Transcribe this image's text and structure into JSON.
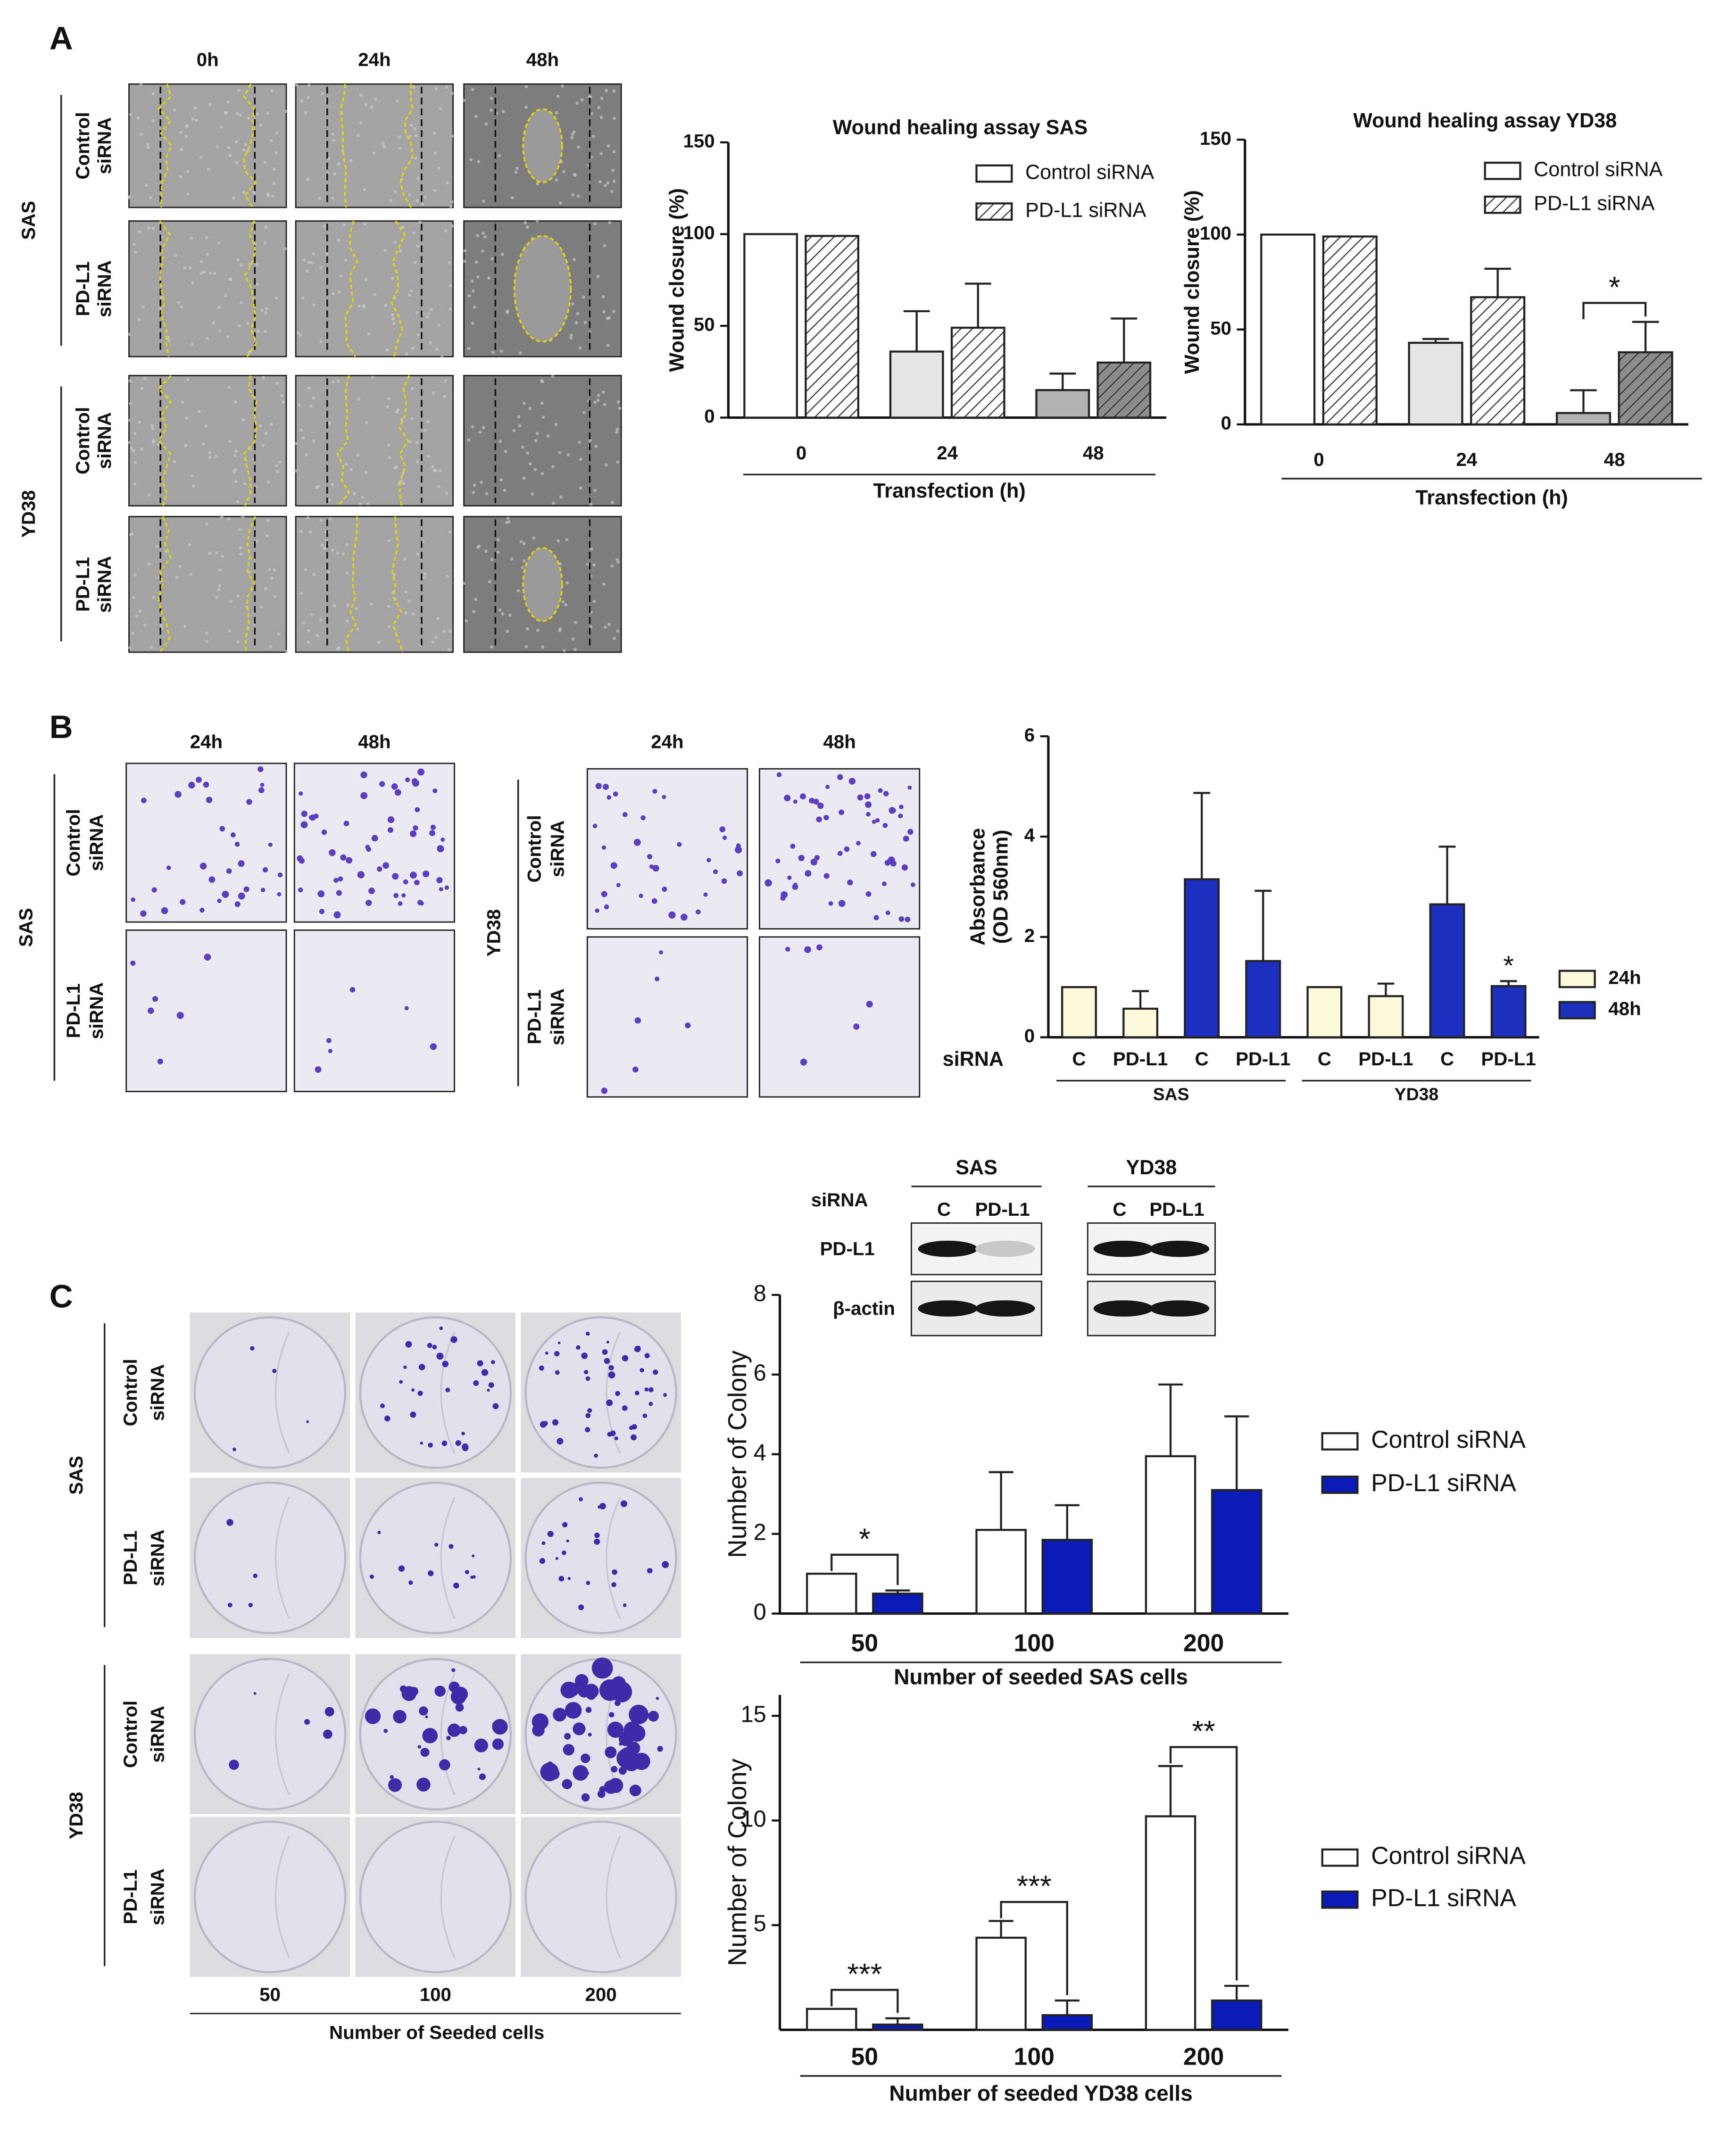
{
  "panel_labels": [
    "A",
    "B",
    "C"
  ],
  "panel_A_images": {
    "columns": [
      "0h",
      "24h",
      "48h"
    ],
    "groups": [
      {
        "name": "SAS",
        "rows": [
          [
            "Control",
            "siRNA"
          ],
          [
            "PD-L1",
            "siRNA"
          ]
        ]
      },
      {
        "name": "YD38",
        "rows": [
          [
            "Control",
            "siRNA"
          ],
          [
            "PD-L1",
            "siRNA"
          ]
        ]
      }
    ]
  },
  "panel_B_images": {
    "sets": [
      {
        "name": "SAS",
        "columns": [
          "24h",
          "48h"
        ],
        "rows": [
          [
            "Control",
            "siRNA"
          ],
          [
            "PD-L1",
            "siRNA"
          ]
        ]
      },
      {
        "name": "YD38",
        "columns": [
          "24h",
          "48h"
        ],
        "rows": [
          [
            "Control",
            "siRNA"
          ],
          [
            "PD-L1",
            "siRNA"
          ]
        ]
      }
    ]
  },
  "panel_C_images": {
    "columns": [
      "50",
      "100",
      "200"
    ],
    "xlabel": "Number of Seeded cells",
    "groups": [
      {
        "name": "SAS",
        "rows": [
          [
            "Control",
            "siRNA"
          ],
          [
            "PD-L1",
            "siRNA"
          ]
        ]
      },
      {
        "name": "YD38",
        "rows": [
          [
            "Control",
            "siRNA"
          ],
          [
            "PD-L1",
            "siRNA"
          ]
        ]
      }
    ]
  },
  "western_blot": {
    "groups": [
      "SAS",
      "YD38"
    ],
    "siRNA_label": "siRNA",
    "lanes": [
      [
        "C",
        "PD-L1"
      ],
      [
        "C",
        "PD-L1"
      ]
    ],
    "rows": [
      "PD-L1",
      "β-actin"
    ]
  },
  "chart_data": [
    {
      "type": "bar",
      "title": "Wound healing assay SAS",
      "ylabel": "Wound closure (%)",
      "xlabel": "Transfection (h)",
      "categories": [
        "0",
        "24",
        "48"
      ],
      "series": [
        {
          "name": "Control siRNA",
          "colors": [
            "#ffffff",
            "#e6e6e6",
            "#b3b3b3"
          ],
          "values": [
            100,
            36,
            15
          ],
          "errors": [
            null,
            22,
            9
          ]
        },
        {
          "name": "PD-L1 siRNA",
          "pattern": "hatch",
          "colors": [
            "#ffffff",
            "#ffffff",
            "#8c8c8c"
          ],
          "values": [
            99,
            49,
            30
          ],
          "errors": [
            null,
            24,
            24
          ]
        }
      ],
      "ylim": [
        0,
        150
      ],
      "yticks": [
        0,
        50,
        100,
        150
      ],
      "legend": "upper right"
    },
    {
      "type": "bar",
      "title": "Wound healing assay YD38",
      "ylabel": "Wound closure (%)",
      "xlabel": "Transfection (h)",
      "categories": [
        "0",
        "24",
        "48"
      ],
      "series": [
        {
          "name": "Control siRNA",
          "colors": [
            "#ffffff",
            "#e6e6e6",
            "#b3b3b3"
          ],
          "values": [
            100,
            43,
            6
          ],
          "errors": [
            null,
            2,
            12
          ]
        },
        {
          "name": "PD-L1 siRNA",
          "pattern": "hatch",
          "colors": [
            "#ffffff",
            "#ffffff",
            "#8c8c8c"
          ],
          "values": [
            99,
            67,
            38
          ],
          "errors": [
            null,
            15,
            16
          ]
        }
      ],
      "ylim": [
        0,
        150
      ],
      "yticks": [
        0,
        50,
        100,
        150
      ],
      "significance": [
        null,
        null,
        "*"
      ],
      "significance_style": "bracket",
      "legend": "upper right"
    },
    {
      "type": "bar",
      "ylabel": [
        "Absorbance",
        "(OD 560nm)"
      ],
      "category_label": "siRNA",
      "categories": [
        "C",
        "PD-L1",
        "C",
        "PD-L1",
        "C",
        "PD-L1",
        "C",
        "PD-L1"
      ],
      "group_labels": [
        "SAS",
        "YD38"
      ],
      "series": [
        {
          "name": "24h",
          "color": "#fcf9dc",
          "values": [
            1,
            0.57,
            null,
            null,
            1,
            0.82,
            null,
            null
          ],
          "errors": [
            null,
            0.35,
            null,
            null,
            null,
            0.25,
            null,
            null
          ]
        },
        {
          "name": "48h",
          "color": "#1d2fc0",
          "values": [
            null,
            null,
            3.15,
            1.52,
            null,
            null,
            2.65,
            1.02
          ],
          "errors": [
            null,
            null,
            1.72,
            1.4,
            null,
            null,
            1.15,
            0.1
          ]
        }
      ],
      "ylim": [
        0,
        6
      ],
      "yticks": [
        0,
        2,
        4,
        6
      ],
      "significance": [
        null,
        null,
        null,
        null,
        null,
        null,
        null,
        "*"
      ],
      "significance_style": "above",
      "legend": "right"
    },
    {
      "type": "bar",
      "ylabel": "Number of Colony",
      "xlabel": "Number of seeded SAS cells",
      "categories": [
        "50",
        "100",
        "200"
      ],
      "series": [
        {
          "name": "Control siRNA",
          "color": "#ffffff",
          "values": [
            1,
            2.1,
            3.95
          ],
          "errors": [
            null,
            1.45,
            1.8
          ]
        },
        {
          "name": "PD-L1 siRNA",
          "color": "#0b1bb8",
          "values": [
            0.5,
            1.85,
            3.1
          ],
          "errors": [
            0.08,
            0.87,
            1.85
          ]
        }
      ],
      "ylim": [
        0,
        8
      ],
      "yticks": [
        0,
        2,
        4,
        6,
        8
      ],
      "significance": [
        "*",
        null,
        null
      ],
      "significance_style": "bracket",
      "legend": "right"
    },
    {
      "type": "bar",
      "ylabel": "Number of Colony",
      "xlabel": "Number of seeded YD38 cells",
      "categories": [
        "50",
        "100",
        "200"
      ],
      "series": [
        {
          "name": "Control siRNA",
          "color": "#ffffff",
          "values": [
            1,
            4.4,
            10.2
          ],
          "errors": [
            null,
            0.8,
            2.4
          ]
        },
        {
          "name": "PD-L1 siRNA",
          "color": "#0b1bb8",
          "values": [
            0.25,
            0.7,
            1.4
          ],
          "errors": [
            0.3,
            0.7,
            0.7
          ]
        }
      ],
      "ylim": [
        0,
        16
      ],
      "yticks": [
        5,
        10,
        15
      ],
      "significance": [
        "***",
        "***",
        "**"
      ],
      "significance_style": "bracket",
      "legend": "right"
    }
  ]
}
